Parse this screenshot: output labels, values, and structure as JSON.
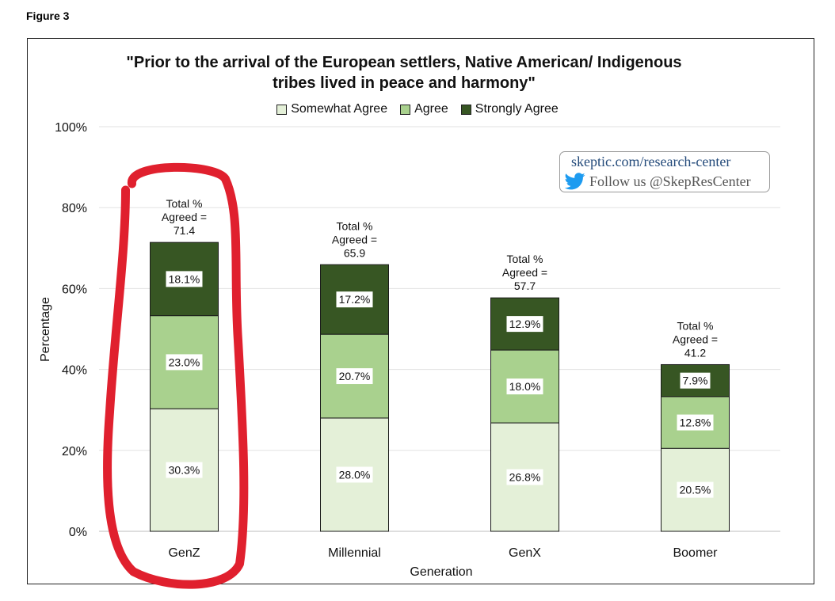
{
  "figure_label": "Figure 3",
  "badge": {
    "url": "skeptic.com/research-center",
    "follow": "Follow us @SkepResCenter",
    "icon": "twitter-bird-icon",
    "icon_color": "#1d9bf0"
  },
  "annotation": {
    "shape": "hand-drawn ellipse",
    "target": "GenZ",
    "color": "#e0202e"
  },
  "chart_data": {
    "type": "bar",
    "stacked": true,
    "title": "\"Prior to the arrival of the European settlers, Native American/ Indigenous tribes lived in peace and harmony\"",
    "title_lines": [
      "\"Prior to the arrival of the European settlers, Native American/ Indigenous",
      "tribes lived in peace and harmony\""
    ],
    "xlabel": "Generation",
    "ylabel": "Percentage",
    "ylim": [
      0,
      100
    ],
    "yticks": [
      0,
      20,
      40,
      60,
      80,
      100
    ],
    "ytick_labels": [
      "0%",
      "20%",
      "40%",
      "60%",
      "80%",
      "100%"
    ],
    "grid": true,
    "legend_position": "top-center",
    "categories": [
      "GenZ",
      "Millennial",
      "GenX",
      "Boomer"
    ],
    "series": [
      {
        "name": "Somewhat Agree",
        "color": "#e4f0d8",
        "values": [
          30.3,
          28.0,
          26.8,
          20.5
        ],
        "labels": [
          "30.3%",
          "28.0%",
          "26.8%",
          "20.5%"
        ]
      },
      {
        "name": "Agree",
        "color": "#a9d18e",
        "values": [
          23.0,
          20.7,
          18.0,
          12.8
        ],
        "labels": [
          "23.0%",
          "20.7%",
          "18.0%",
          "12.8%"
        ]
      },
      {
        "name": "Strongly Agree",
        "color": "#375623",
        "values": [
          18.1,
          17.2,
          12.9,
          7.9
        ],
        "labels": [
          "18.1%",
          "17.2%",
          "12.9%",
          "7.9%"
        ]
      }
    ],
    "total_label_lines": [
      "Total %",
      "Agreed ="
    ],
    "totals": [
      71.4,
      65.9,
      57.7,
      41.2
    ],
    "total_labels": [
      "71.4",
      "65.9",
      "57.7",
      "41.2"
    ]
  }
}
